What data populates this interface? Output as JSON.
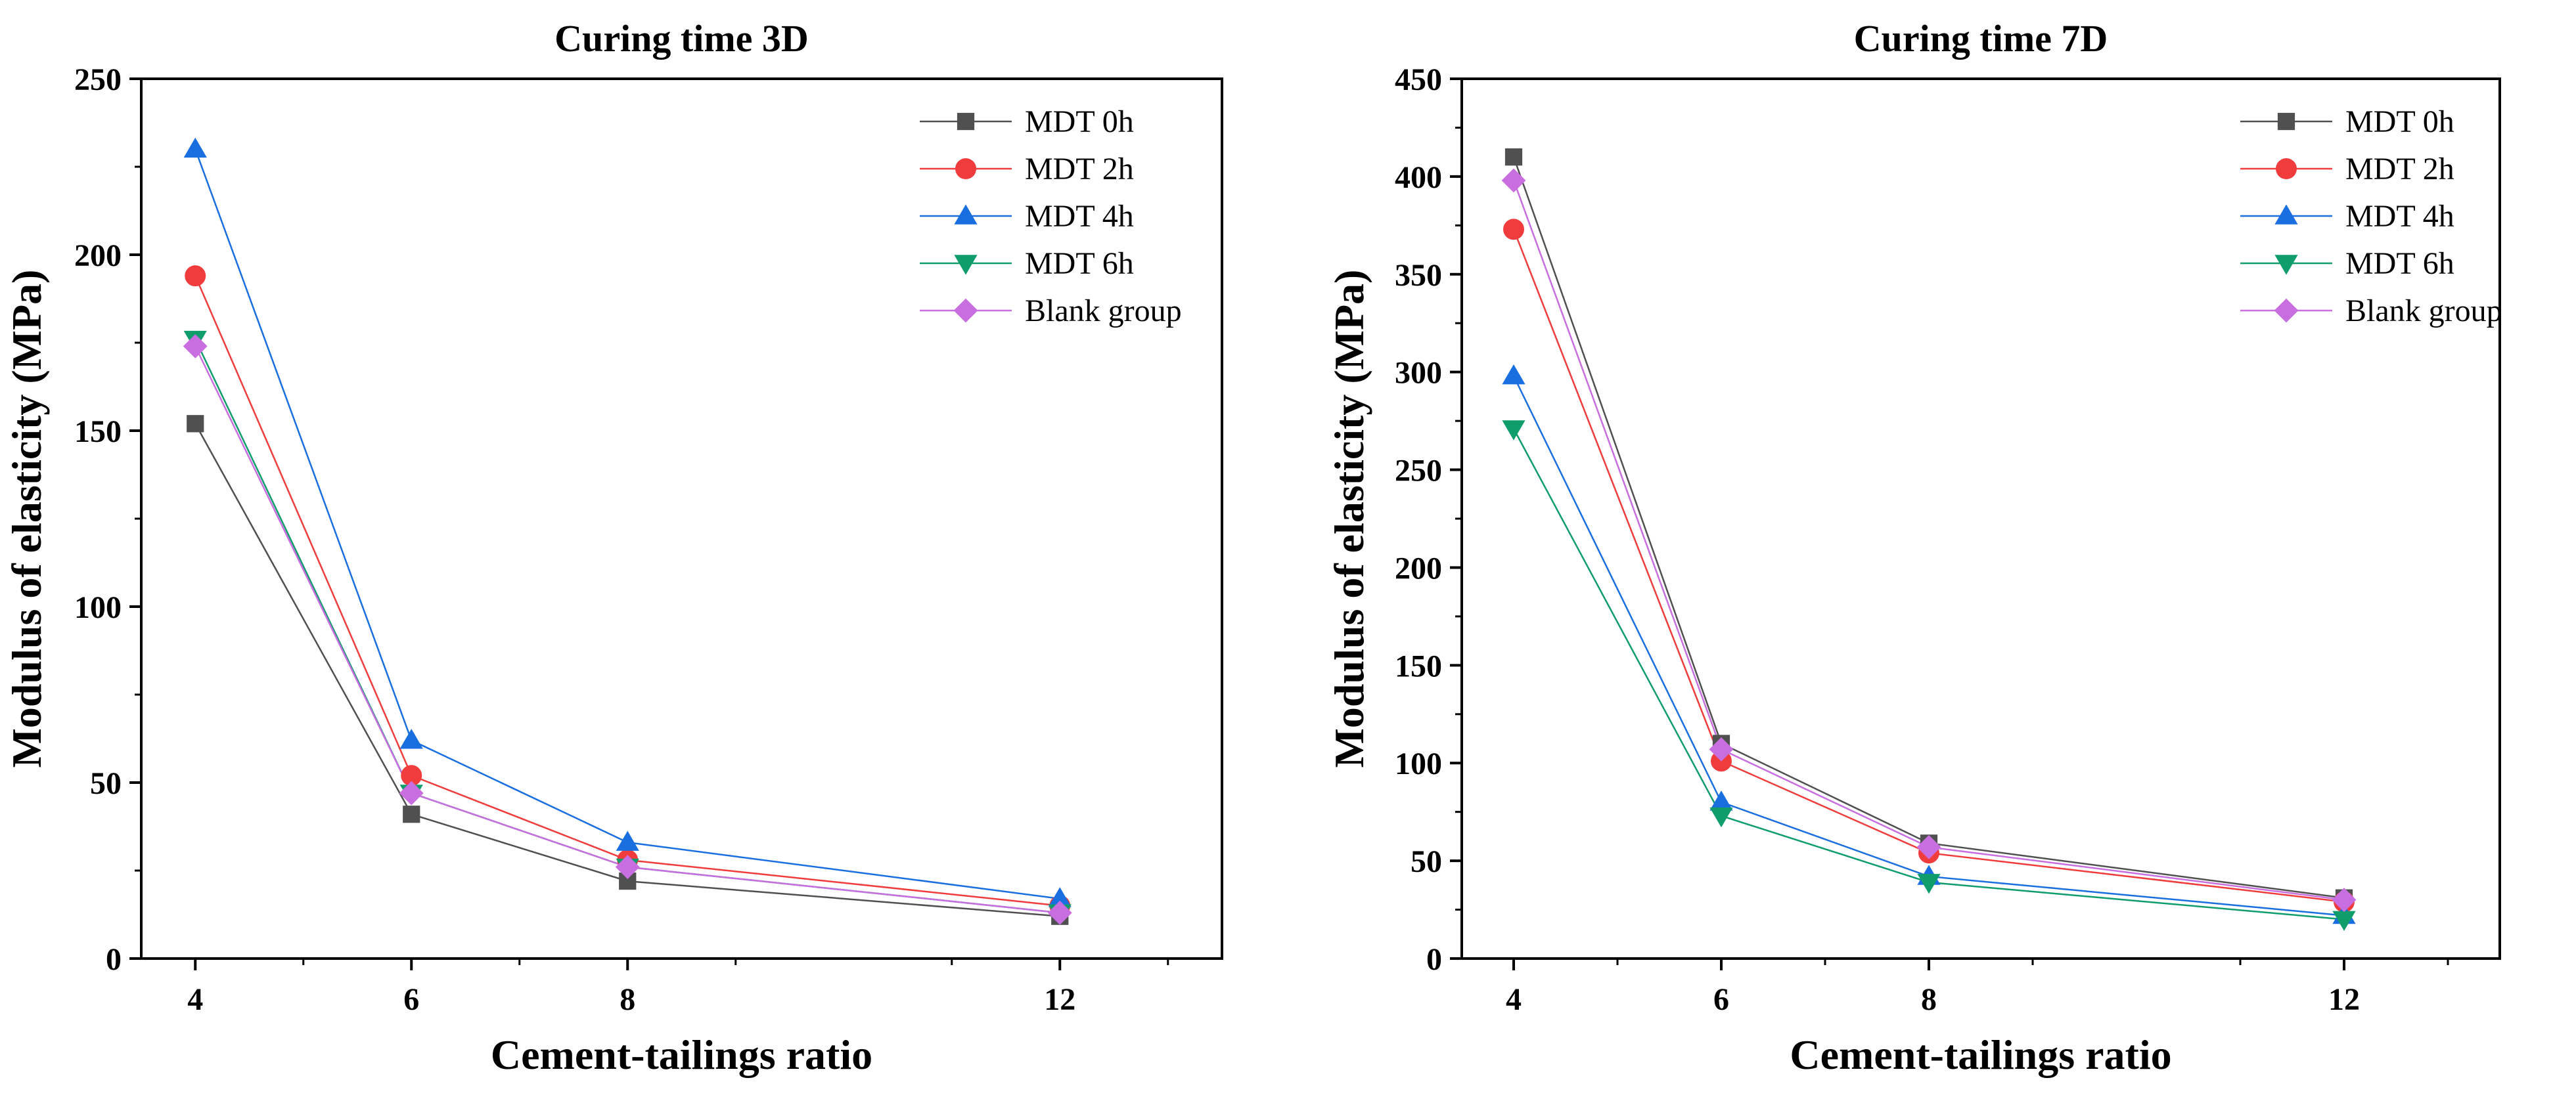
{
  "chart_data": [
    {
      "type": "line",
      "title": "Curing time 3D",
      "xlabel": "Cement-tailings ratio",
      "ylabel": "Modulus of elasticity (MPa)",
      "xlim": [
        3.5,
        13.5
      ],
      "ylim": [
        0,
        250
      ],
      "x_ticks": [
        4,
        6,
        8,
        12
      ],
      "y_ticks": [
        0,
        50,
        100,
        150,
        200,
        250
      ],
      "legend_position": "top-right",
      "x": [
        4,
        6,
        8,
        12
      ],
      "series": [
        {
          "name": "MDT 0h",
          "color": "#505050",
          "marker": "square",
          "values": [
            152,
            41,
            22,
            12
          ]
        },
        {
          "name": "MDT 2h",
          "color": "#f03c3c",
          "marker": "circle",
          "values": [
            194,
            52,
            28,
            15
          ]
        },
        {
          "name": "MDT 4h",
          "color": "#1a6fe0",
          "marker": "triangle-up",
          "values": [
            230,
            62,
            33,
            17
          ]
        },
        {
          "name": "MDT 6h",
          "color": "#0f9d6c",
          "marker": "triangle-down",
          "values": [
            176,
            47,
            26,
            13
          ]
        },
        {
          "name": "Blank group",
          "color": "#c86ee0",
          "marker": "diamond",
          "values": [
            174,
            47,
            26,
            13
          ]
        }
      ]
    },
    {
      "type": "line",
      "title": "Curing time 7D",
      "xlabel": "Cement-tailings ratio",
      "ylabel": "Modulus of elasticity (MPa)",
      "xlim": [
        3.5,
        13.5
      ],
      "ylim": [
        0,
        450
      ],
      "x_ticks": [
        4,
        6,
        8,
        12
      ],
      "y_ticks": [
        0,
        50,
        100,
        150,
        200,
        250,
        300,
        350,
        400,
        450
      ],
      "legend_position": "top-right",
      "x": [
        4,
        6,
        8,
        12
      ],
      "series": [
        {
          "name": "MDT 0h",
          "color": "#505050",
          "marker": "square",
          "values": [
            410,
            110,
            59,
            31
          ]
        },
        {
          "name": "MDT 2h",
          "color": "#f03c3c",
          "marker": "circle",
          "values": [
            373,
            101,
            54,
            29
          ]
        },
        {
          "name": "MDT 4h",
          "color": "#1a6fe0",
          "marker": "triangle-up",
          "values": [
            298,
            80,
            42,
            22
          ]
        },
        {
          "name": "MDT 6h",
          "color": "#0f9d6c",
          "marker": "triangle-down",
          "values": [
            271,
            73,
            39,
            20
          ]
        },
        {
          "name": "Blank group",
          "color": "#c86ee0",
          "marker": "diamond",
          "values": [
            398,
            107,
            57,
            30
          ]
        }
      ]
    }
  ]
}
